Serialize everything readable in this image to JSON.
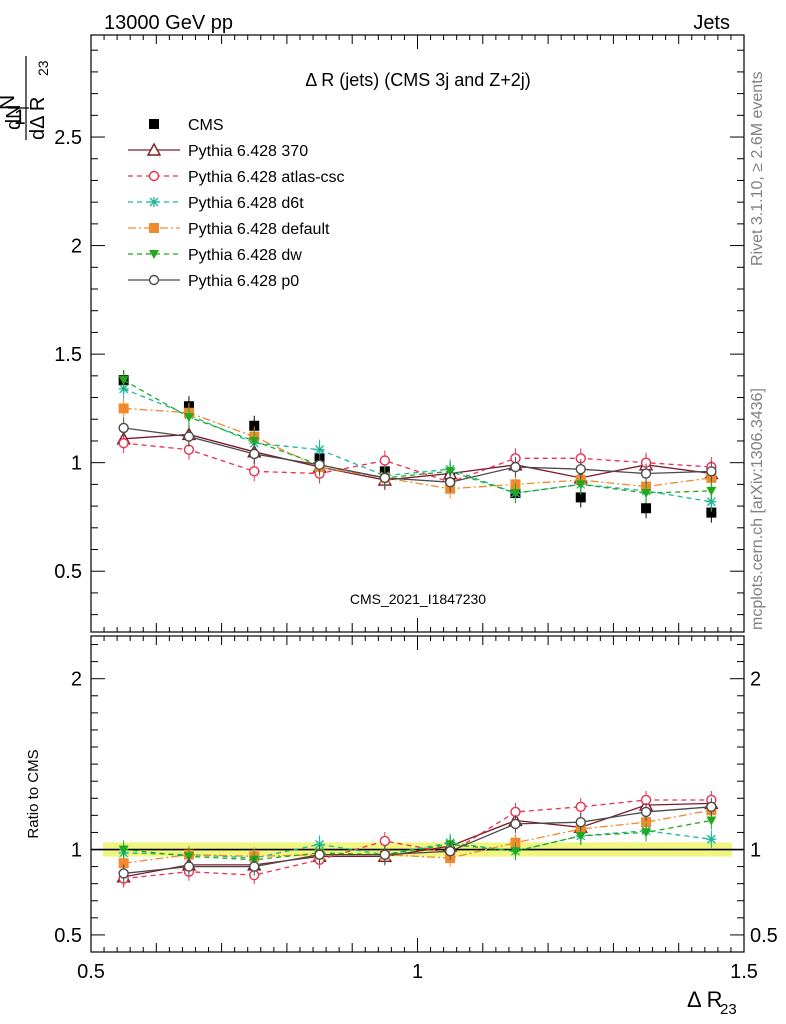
{
  "header": {
    "left": "13000 GeV pp",
    "right": "Jets"
  },
  "side_labels": {
    "rivet": "Rivet 3.1.10, ≥ 2.6M events",
    "mcplots": "mcplots.cern.ch [arXiv:1306.3436]"
  },
  "chart_data": [
    {
      "type": "scatter",
      "panel": "main",
      "title": "Δ R (jets) (CMS 3j and Z+2j)",
      "ylabel": "1/N dN/dΔ R23",
      "ylabel_parts": {
        "num1": "1",
        "num2": "dN",
        "den1": "N",
        "den2": "dΔ R",
        "sub": "23"
      },
      "watermark": "CMS_2021_I1847230",
      "xlim": [
        0.5,
        1.5
      ],
      "ylim": [
        0.22,
        2.97
      ],
      "y_ticks": [
        0.5,
        1,
        1.5,
        2,
        2.5
      ],
      "y_tick_labels": [
        "0.5",
        "1",
        "1.5",
        "2",
        "2.5"
      ],
      "legend_position": "top-left",
      "x": [
        0.55,
        0.65,
        0.75,
        0.85,
        0.95,
        1.05,
        1.15,
        1.25,
        1.35,
        1.45
      ],
      "series": [
        {
          "name": "CMS",
          "color": "#000000",
          "marker": "square",
          "line": "none",
          "values": [
            1.38,
            1.26,
            1.17,
            1.02,
            0.96,
            0.93,
            0.86,
            0.84,
            0.79,
            0.77
          ]
        },
        {
          "name": "Pythia 6.428 370",
          "color": "#7d1a2a",
          "marker": "triangle-open",
          "line": "solid",
          "values": [
            1.11,
            1.13,
            1.05,
            0.98,
            0.92,
            0.95,
            0.99,
            0.93,
            0.99,
            0.95
          ]
        },
        {
          "name": "Pythia 6.428 atlas-csc",
          "color": "#e8304f",
          "marker": "circle-open",
          "line": "dashed",
          "values": [
            1.09,
            1.06,
            0.96,
            0.95,
            1.01,
            0.91,
            1.02,
            1.02,
            1.0,
            0.98
          ]
        },
        {
          "name": "Pythia 6.428 d6t",
          "color": "#19b89a",
          "marker": "star",
          "line": "dashed",
          "values": [
            1.34,
            1.22,
            1.09,
            1.06,
            0.94,
            0.97,
            0.86,
            0.9,
            0.87,
            0.82
          ]
        },
        {
          "name": "Pythia 6.428 default",
          "color": "#f08a2e",
          "marker": "square",
          "line": "dashdot",
          "values": [
            1.25,
            1.23,
            1.12,
            0.98,
            0.93,
            0.88,
            0.9,
            0.92,
            0.89,
            0.93
          ]
        },
        {
          "name": "Pythia 6.428 dw",
          "color": "#22a81e",
          "marker": "triangle-down",
          "line": "dashed",
          "values": [
            1.38,
            1.21,
            1.1,
            0.99,
            0.93,
            0.96,
            0.86,
            0.9,
            0.86,
            0.87
          ]
        },
        {
          "name": "Pythia 6.428 p0",
          "color": "#4a4a4a",
          "marker": "circle-open",
          "line": "solid",
          "values": [
            1.16,
            1.12,
            1.04,
            0.99,
            0.93,
            0.91,
            0.98,
            0.97,
            0.95,
            0.96
          ]
        }
      ]
    },
    {
      "type": "scatter",
      "panel": "ratio",
      "ylabel": "Ratio to CMS",
      "xlabel": "Δ R23",
      "xlabel_parts": {
        "main": "Δ R",
        "sub": "23"
      },
      "xlim": [
        0.5,
        1.5
      ],
      "ylim": [
        0.4,
        2.25
      ],
      "x_ticks": [
        0.5,
        1,
        1.5
      ],
      "x_tick_labels": [
        "0.5",
        "1",
        "1.5"
      ],
      "y_ticks": [
        0.5,
        1,
        2
      ],
      "y_tick_labels": [
        "0.5",
        "1",
        "2"
      ],
      "reference_line": 1,
      "band": {
        "color": "#eef56a",
        "lo": 0.97,
        "hi": 1.03
      },
      "x": [
        0.55,
        0.65,
        0.75,
        0.85,
        0.95,
        1.05,
        1.15,
        1.25,
        1.35,
        1.45
      ],
      "series": [
        {
          "name": "Pythia 6.428 370",
          "values": [
            0.84,
            0.91,
            0.91,
            0.96,
            0.96,
            1.02,
            1.17,
            1.13,
            1.26,
            1.27
          ]
        },
        {
          "name": "Pythia 6.428 atlas-csc",
          "values": [
            0.83,
            0.87,
            0.85,
            0.94,
            1.05,
            0.98,
            1.22,
            1.25,
            1.29,
            1.29
          ]
        },
        {
          "name": "Pythia 6.428 d6t",
          "values": [
            0.98,
            0.97,
            0.95,
            1.03,
            0.97,
            1.04,
            0.99,
            1.08,
            1.11,
            1.06
          ]
        },
        {
          "name": "Pythia 6.428 default",
          "values": [
            0.92,
            0.97,
            0.96,
            0.97,
            0.97,
            0.95,
            1.04,
            1.12,
            1.16,
            1.23
          ]
        },
        {
          "name": "Pythia 6.428 dw",
          "values": [
            1.0,
            0.96,
            0.94,
            0.98,
            0.97,
            1.03,
            0.99,
            1.08,
            1.1,
            1.17
          ]
        },
        {
          "name": "Pythia 6.428 p0",
          "values": [
            0.86,
            0.9,
            0.9,
            0.97,
            0.97,
            0.99,
            1.15,
            1.16,
            1.22,
            1.25
          ]
        }
      ]
    }
  ]
}
